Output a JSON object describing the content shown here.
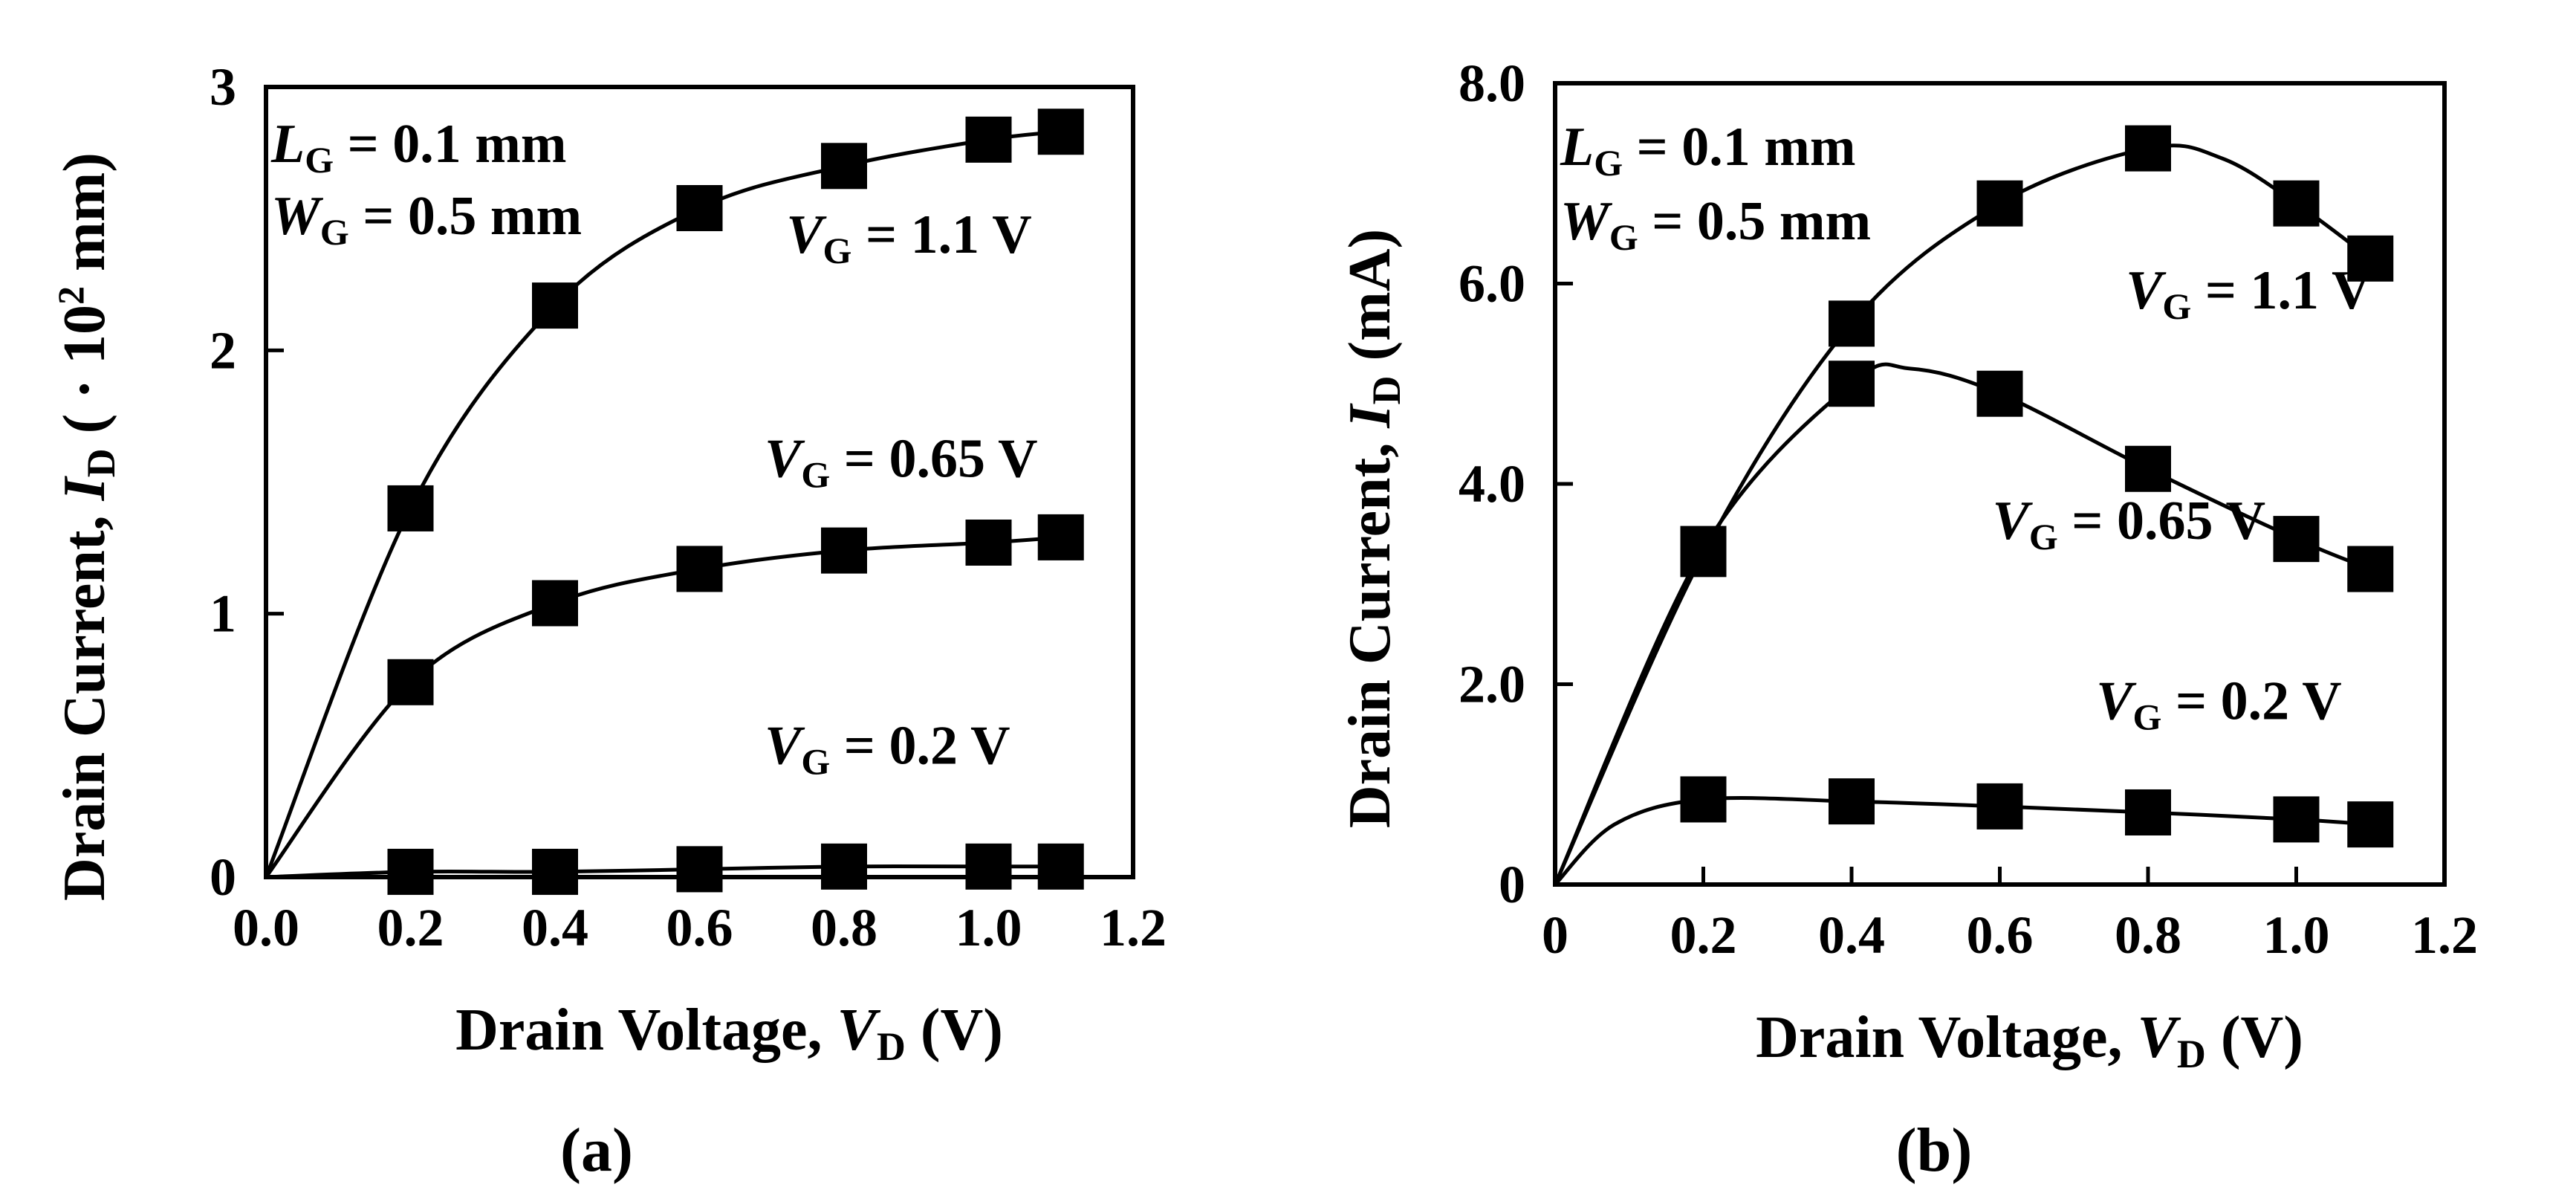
{
  "chart_data": [
    {
      "panel": "a",
      "caption": "(a)",
      "type": "line",
      "xlabel": "Drain Voltage, V_D (V)",
      "xlabel_parts": {
        "main": "Drain Voltage, ",
        "sym": "V",
        "sub": "D",
        "unit": " (V)"
      },
      "ylabel": "Drain Current, I_D (· 10² mm)",
      "ylabel_parts": {
        "main": "Drain Current, ",
        "sym": "I",
        "sub": "D",
        "unit": " ( · 10",
        "sup": "2",
        "unit2": " mm)"
      },
      "xlim": [
        0,
        1.2
      ],
      "ylim": [
        0,
        3
      ],
      "xticks": [
        "0.0",
        "0.2",
        "0.4",
        "0.6",
        "0.8",
        "1.0",
        "1.2"
      ],
      "xtick_values": [
        0,
        0.2,
        0.4,
        0.6,
        0.8,
        1.0,
        1.2
      ],
      "yticks": [
        "0",
        "1",
        "2",
        "3"
      ],
      "ytick_values": [
        0,
        1,
        2,
        3
      ],
      "params": [
        {
          "sym": "L",
          "sub": "G",
          "text": " = 0.1 mm"
        },
        {
          "sym": "W",
          "sub": "G",
          "text": " = 0.5 mm"
        }
      ],
      "series": [
        {
          "name": "V_G = 1.1 V",
          "label": {
            "sym": "V",
            "sub": "G",
            "text": " = 1.1 V",
            "at": [
              0.72,
              2.37
            ]
          },
          "x": [
            0.2,
            0.4,
            0.6,
            0.8,
            1.0,
            1.1
          ],
          "y": [
            1.4,
            2.17,
            2.54,
            2.7,
            2.8,
            2.83
          ],
          "curve": [
            [
              0,
              0
            ],
            [
              0.2,
              1.4
            ],
            [
              0.4,
              2.17
            ],
            [
              0.6,
              2.54
            ],
            [
              0.8,
              2.7
            ],
            [
              1.0,
              2.8
            ],
            [
              1.1,
              2.83
            ]
          ]
        },
        {
          "name": "V_G = 0.65 V",
          "label": {
            "sym": "V",
            "sub": "G",
            "text": " = 0.65 V",
            "at": [
              0.69,
              1.52
            ]
          },
          "x": [
            0.2,
            0.4,
            0.6,
            0.8,
            1.0,
            1.1
          ],
          "y": [
            0.74,
            1.04,
            1.17,
            1.24,
            1.27,
            1.29
          ],
          "curve": [
            [
              0,
              0
            ],
            [
              0.2,
              0.74
            ],
            [
              0.4,
              1.04
            ],
            [
              0.6,
              1.17
            ],
            [
              0.8,
              1.24
            ],
            [
              1.0,
              1.27
            ],
            [
              1.1,
              1.29
            ]
          ]
        },
        {
          "name": "V_G = 0.2 V",
          "label": {
            "sym": "V",
            "sub": "G",
            "text": " = 0.2 V",
            "at": [
              0.69,
              0.43
            ]
          },
          "x": [
            0.2,
            0.4,
            0.6,
            0.8,
            1.0,
            1.1
          ],
          "y": [
            0.02,
            0.02,
            0.03,
            0.04,
            0.04,
            0.04
          ],
          "curve": [
            [
              0,
              0
            ],
            [
              0.2,
              0.02
            ],
            [
              0.4,
              0.02
            ],
            [
              0.6,
              0.03
            ],
            [
              0.8,
              0.04
            ],
            [
              1.0,
              0.04
            ],
            [
              1.1,
              0.04
            ]
          ]
        }
      ]
    },
    {
      "panel": "b",
      "caption": "(b)",
      "type": "line",
      "xlabel": "Drain Voltage, V_D (V)",
      "xlabel_parts": {
        "main": "Drain Voltage, ",
        "sym": "V",
        "sub": "D",
        "unit": " (V)"
      },
      "ylabel": "Drain Current, I_D (mA)",
      "ylabel_parts": {
        "main": "Drain Current, ",
        "sym": "I",
        "sub": "D",
        "unit": " (mA)"
      },
      "xlim": [
        0,
        1.2
      ],
      "ylim": [
        0,
        8
      ],
      "xticks": [
        "0",
        "0.2",
        "0.4",
        "0.6",
        "0.8",
        "1.0",
        "1.2"
      ],
      "xtick_values": [
        0,
        0.2,
        0.4,
        0.6,
        0.8,
        1.0,
        1.2
      ],
      "yticks": [
        "0",
        "2.0",
        "4.0",
        "6.0",
        "8.0"
      ],
      "ytick_values": [
        0,
        2,
        4,
        6,
        8
      ],
      "params": [
        {
          "sym": "L",
          "sub": "G",
          "text": " = 0.1 mm"
        },
        {
          "sym": "W",
          "sub": "G",
          "text": " = 0.5 mm"
        }
      ],
      "series": [
        {
          "name": "V_G = 1.1 V",
          "label": {
            "sym": "V",
            "sub": "G",
            "text": " = 1.1 V",
            "at": [
              0.77,
              5.75
            ]
          },
          "x": [
            0.2,
            0.4,
            0.6,
            0.8,
            1.0,
            1.1
          ],
          "y": [
            3.3,
            5.6,
            6.8,
            7.35,
            6.8,
            6.25
          ],
          "curve": [
            [
              0,
              0
            ],
            [
              0.2,
              3.3
            ],
            [
              0.4,
              5.6
            ],
            [
              0.6,
              6.8
            ],
            [
              0.8,
              7.35
            ],
            [
              0.9,
              7.25
            ],
            [
              1.0,
              6.8
            ],
            [
              1.1,
              6.25
            ]
          ]
        },
        {
          "name": "V_G = 0.65 V",
          "label": {
            "sym": "V",
            "sub": "G",
            "text": " = 0.65 V",
            "at": [
              0.59,
              3.45
            ]
          },
          "x": [
            0.2,
            0.4,
            0.6,
            0.8,
            1.0,
            1.1
          ],
          "y": [
            3.35,
            5.0,
            4.9,
            4.15,
            3.45,
            3.15
          ],
          "curve": [
            [
              0,
              0
            ],
            [
              0.2,
              3.35
            ],
            [
              0.4,
              5.0
            ],
            [
              0.48,
              5.15
            ],
            [
              0.6,
              4.9
            ],
            [
              0.8,
              4.15
            ],
            [
              1.0,
              3.45
            ],
            [
              1.1,
              3.15
            ]
          ]
        },
        {
          "name": "V_G = 0.2 V",
          "label": {
            "sym": "V",
            "sub": "G",
            "text": " = 0.2 V",
            "at": [
              0.73,
              1.65
            ]
          },
          "x": [
            0.2,
            0.4,
            0.6,
            0.8,
            1.0,
            1.1
          ],
          "y": [
            0.85,
            0.83,
            0.78,
            0.72,
            0.65,
            0.6
          ],
          "curve": [
            [
              0,
              0
            ],
            [
              0.08,
              0.6
            ],
            [
              0.2,
              0.85
            ],
            [
              0.4,
              0.83
            ],
            [
              0.6,
              0.78
            ],
            [
              0.8,
              0.72
            ],
            [
              1.0,
              0.65
            ],
            [
              1.1,
              0.6
            ]
          ]
        }
      ]
    }
  ]
}
